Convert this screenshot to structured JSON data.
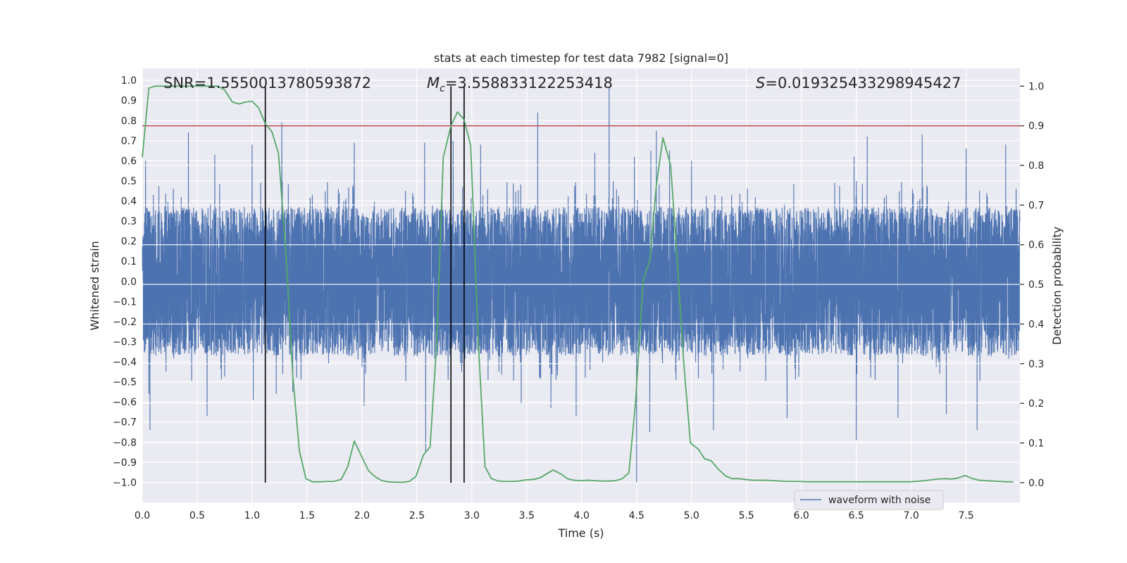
{
  "chart_data": {
    "type": "line",
    "title": "stats at each timestep for test data 7982 [signal=0]",
    "xlabel": "Time (s)",
    "ylabel_left": "Whitened strain",
    "ylabel_right": "Detection probability",
    "xlim": [
      0,
      7.99
    ],
    "ylim_left": [
      -1.1,
      1.06
    ],
    "ylim_right": [
      -0.05,
      1.045
    ],
    "x_ticks": [
      0.0,
      0.5,
      1.0,
      1.5,
      2.0,
      2.5,
      3.0,
      3.5,
      4.0,
      4.5,
      5.0,
      5.5,
      6.0,
      6.5,
      7.0,
      7.5
    ],
    "x_tick_labels": [
      "0.0",
      "0.5",
      "1.0",
      "1.5",
      "2.0",
      "2.5",
      "3.0",
      "3.5",
      "4.0",
      "4.5",
      "5.0",
      "5.5",
      "6.0",
      "6.5",
      "7.0",
      "7.5"
    ],
    "y_left_ticks": [
      1.0,
      0.9,
      0.8,
      0.7,
      0.6,
      0.5,
      0.4,
      0.3,
      0.2,
      0.1,
      0.0,
      -0.1,
      -0.2,
      -0.3,
      -0.4,
      -0.5,
      -0.6,
      -0.7,
      -0.8,
      -0.9,
      -1.0
    ],
    "y_left_tick_labels": [
      "1.0",
      "0.9",
      "0.8",
      "0.7",
      "0.6",
      "0.5",
      "0.4",
      "0.3",
      "0.2",
      "0.1",
      "0.0",
      "-0.1",
      "-0.2",
      "-0.3",
      "-0.4",
      "-0.5",
      "-0.6",
      "-0.7",
      "-0.8",
      "-0.9",
      "-1.0"
    ],
    "y_right_ticks": [
      1.0,
      0.9,
      0.8,
      0.7,
      0.6,
      0.5,
      0.4,
      0.3,
      0.2,
      0.1,
      0.0
    ],
    "y_right_tick_labels": [
      "1.0",
      "0.9",
      "0.8",
      "0.7",
      "0.6",
      "0.5",
      "0.4",
      "0.3",
      "0.2",
      "0.1",
      "0.0"
    ],
    "annotations": {
      "snr": "SNR=1.5550013780593872",
      "mc_symbol": "M",
      "mc_sub": "c",
      "mc_value": "=3.558833122253418",
      "s_symbol": "S",
      "s_value": "=0.019325433298945427"
    },
    "threshold": {
      "value": 0.9,
      "axis": "right",
      "color": "#c44e52"
    },
    "vertical_markers": [
      1.12,
      2.81,
      2.93
    ],
    "waveform": {
      "name": "waveform with noise",
      "color": "#4c72b0",
      "samples": 8000,
      "typical_amplitude": 0.37,
      "peaks": [
        {
          "t": 0.03,
          "v": 0.6
        },
        {
          "t": 0.06,
          "v": -0.56
        },
        {
          "t": 0.07,
          "v": 0.65
        },
        {
          "t": 0.07,
          "v": -0.74
        },
        {
          "t": 0.42,
          "v": 0.74
        },
        {
          "t": 0.59,
          "v": -0.67
        },
        {
          "t": 0.66,
          "v": 0.63
        },
        {
          "t": 1.0,
          "v": 0.68
        },
        {
          "t": 1.01,
          "v": -0.59
        },
        {
          "t": 1.27,
          "v": 0.79
        },
        {
          "t": 1.22,
          "v": -0.56
        },
        {
          "t": 1.37,
          "v": -0.55
        },
        {
          "t": 1.93,
          "v": 0.69
        },
        {
          "t": 2.02,
          "v": -0.62
        },
        {
          "t": 2.57,
          "v": 0.69
        },
        {
          "t": 2.58,
          "v": -0.85
        },
        {
          "t": 2.83,
          "v": 0.7
        },
        {
          "t": 3.08,
          "v": 0.68
        },
        {
          "t": 3.45,
          "v": -0.61
        },
        {
          "t": 3.6,
          "v": 0.84
        },
        {
          "t": 3.72,
          "v": -0.63
        },
        {
          "t": 3.95,
          "v": -0.67
        },
        {
          "t": 4.12,
          "v": 0.64
        },
        {
          "t": 4.25,
          "v": 0.97
        },
        {
          "t": 4.48,
          "v": 0.62
        },
        {
          "t": 4.5,
          "v": -1.0
        },
        {
          "t": 4.63,
          "v": 0.65
        },
        {
          "t": 4.68,
          "v": 0.75
        },
        {
          "t": 4.62,
          "v": -0.75
        },
        {
          "t": 4.8,
          "v": 0.65
        },
        {
          "t": 5.0,
          "v": 0.6
        },
        {
          "t": 5.2,
          "v": -0.74
        },
        {
          "t": 5.87,
          "v": -0.68
        },
        {
          "t": 6.48,
          "v": 0.62
        },
        {
          "t": 6.5,
          "v": -0.79
        },
        {
          "t": 6.6,
          "v": 0.72
        },
        {
          "t": 6.88,
          "v": -0.68
        },
        {
          "t": 7.1,
          "v": 0.73
        },
        {
          "t": 7.32,
          "v": -0.66
        },
        {
          "t": 7.5,
          "v": 0.66
        },
        {
          "t": 7.6,
          "v": -0.74
        },
        {
          "t": 7.86,
          "v": 0.68
        }
      ]
    },
    "probability": {
      "name": "detection probability",
      "color": "#55a868",
      "x": [
        0.0,
        0.06,
        0.12,
        0.25,
        0.5,
        0.69,
        0.75,
        0.82,
        0.88,
        0.94,
        1.0,
        1.06,
        1.12,
        1.18,
        1.24,
        1.31,
        1.37,
        1.43,
        1.49,
        1.55,
        1.62,
        1.68,
        1.74,
        1.81,
        1.87,
        1.93,
        1.99,
        2.06,
        2.12,
        2.18,
        2.24,
        2.31,
        2.37,
        2.43,
        2.49,
        2.56,
        2.62,
        2.68,
        2.74,
        2.81,
        2.87,
        2.93,
        2.99,
        3.06,
        3.12,
        3.18,
        3.24,
        3.31,
        3.37,
        3.43,
        3.49,
        3.56,
        3.62,
        3.68,
        3.74,
        3.81,
        3.87,
        3.93,
        3.99,
        4.06,
        4.12,
        4.18,
        4.24,
        4.31,
        4.37,
        4.43,
        4.49,
        4.56,
        4.62,
        4.68,
        4.74,
        4.81,
        4.87,
        4.93,
        4.99,
        5.06,
        5.12,
        5.18,
        5.24,
        5.31,
        5.37,
        5.43,
        5.49,
        5.56,
        5.62,
        5.68,
        5.74,
        5.81,
        5.87,
        5.93,
        5.99,
        6.06,
        6.24,
        6.49,
        6.74,
        6.99,
        7.12,
        7.18,
        7.24,
        7.31,
        7.37,
        7.43,
        7.49,
        7.56,
        7.62,
        7.68,
        7.74,
        7.81,
        7.87,
        7.93
      ],
      "y": [
        0.82,
        0.995,
        1.0,
        1.0,
        1.0,
        1.0,
        0.99,
        0.96,
        0.955,
        0.96,
        0.962,
        0.945,
        0.905,
        0.885,
        0.83,
        0.57,
        0.27,
        0.08,
        0.01,
        0.002,
        0.002,
        0.003,
        0.003,
        0.008,
        0.04,
        0.105,
        0.07,
        0.03,
        0.015,
        0.005,
        0.002,
        0.001,
        0.001,
        0.003,
        0.015,
        0.07,
        0.09,
        0.35,
        0.82,
        0.9,
        0.935,
        0.915,
        0.85,
        0.35,
        0.04,
        0.01,
        0.004,
        0.003,
        0.003,
        0.004,
        0.007,
        0.008,
        0.012,
        0.022,
        0.032,
        0.022,
        0.01,
        0.006,
        0.005,
        0.006,
        0.005,
        0.004,
        0.004,
        0.005,
        0.01,
        0.025,
        0.2,
        0.51,
        0.56,
        0.75,
        0.87,
        0.8,
        0.56,
        0.3,
        0.1,
        0.085,
        0.06,
        0.055,
        0.035,
        0.017,
        0.01,
        0.01,
        0.008,
        0.006,
        0.006,
        0.006,
        0.005,
        0.004,
        0.003,
        0.003,
        0.003,
        0.002,
        0.002,
        0.002,
        0.002,
        0.002,
        0.005,
        0.007,
        0.009,
        0.01,
        0.009,
        0.012,
        0.018,
        0.01,
        0.006,
        0.005,
        0.004,
        0.003,
        0.002,
        0.002
      ]
    },
    "legend": {
      "label": "waveform with noise",
      "placement": "lower-right"
    }
  }
}
